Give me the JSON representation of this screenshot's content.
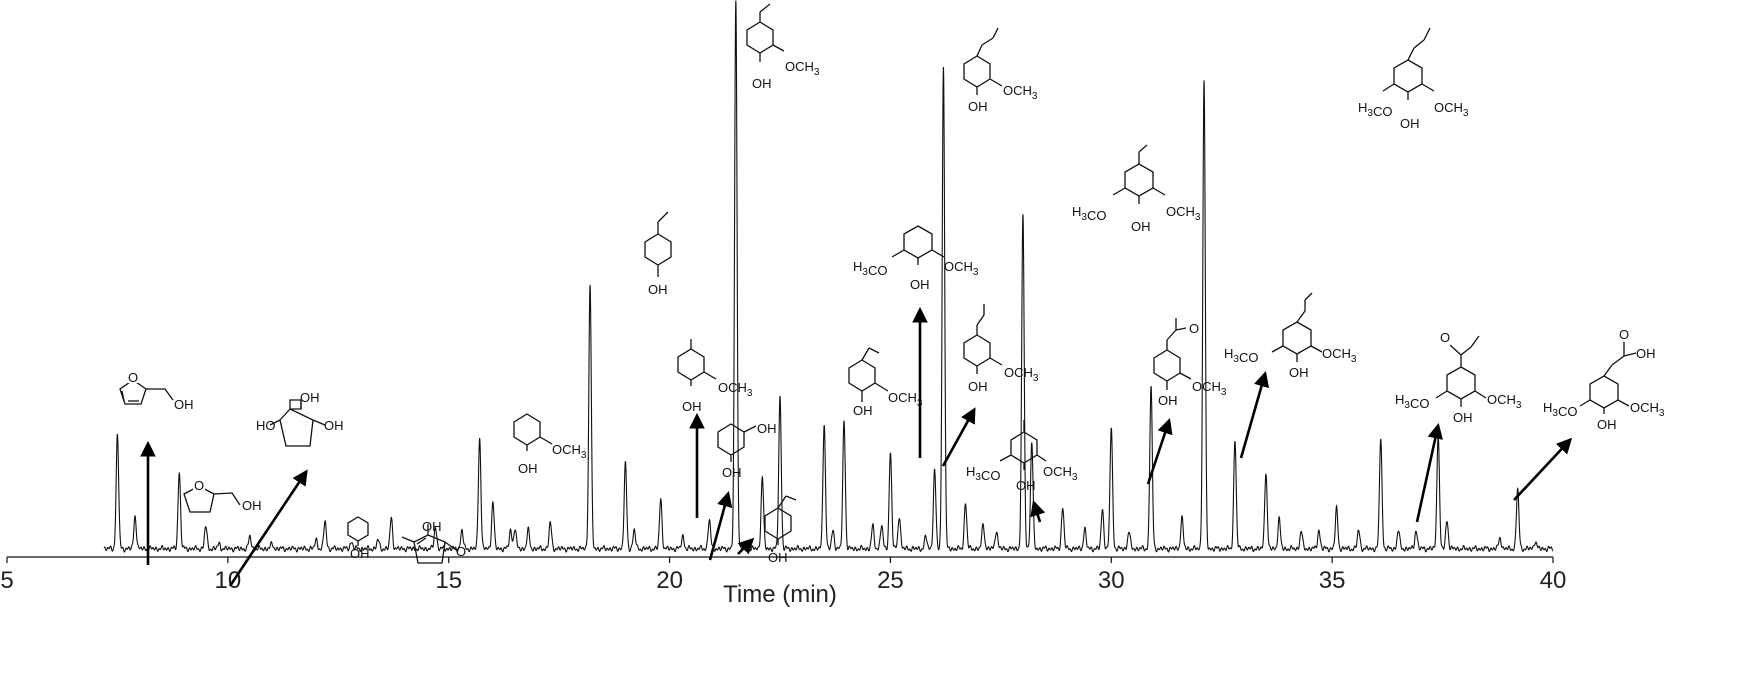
{
  "chart_data": {
    "type": "line",
    "xlabel": "Time (min)",
    "ylabel": "",
    "xlim": [
      5,
      40
    ],
    "ylim": [
      0,
      100
    ],
    "xticks": [
      5,
      10,
      15,
      20,
      25,
      30,
      35,
      40
    ],
    "grid": false,
    "legend": "none",
    "line_color": "#111111",
    "baseline": 0.6,
    "peaks": [
      {
        "x": 7.5,
        "y": 20.8
      },
      {
        "x": 7.9,
        "y": 6.0
      },
      {
        "x": 8.9,
        "y": 13.9
      },
      {
        "x": 9.5,
        "y": 4.1
      },
      {
        "x": 9.8,
        "y": 0.9
      },
      {
        "x": 10.5,
        "y": 2.2
      },
      {
        "x": 11.0,
        "y": 0.9
      },
      {
        "x": 12.0,
        "y": 1.6
      },
      {
        "x": 12.2,
        "y": 5.0
      },
      {
        "x": 12.8,
        "y": 1.3
      },
      {
        "x": 13.4,
        "y": 1.6
      },
      {
        "x": 13.7,
        "y": 5.6
      },
      {
        "x": 14.7,
        "y": 4.0
      },
      {
        "x": 15.3,
        "y": 3.3
      },
      {
        "x": 15.7,
        "y": 20.3
      },
      {
        "x": 16.0,
        "y": 8.6
      },
      {
        "x": 16.4,
        "y": 3.4
      },
      {
        "x": 16.5,
        "y": 3.7
      },
      {
        "x": 16.8,
        "y": 3.4
      },
      {
        "x": 17.3,
        "y": 4.7
      },
      {
        "x": 18.2,
        "y": 48.3
      },
      {
        "x": 19.0,
        "y": 15.4
      },
      {
        "x": 19.2,
        "y": 3.4
      },
      {
        "x": 19.8,
        "y": 9.0
      },
      {
        "x": 20.3,
        "y": 2.3
      },
      {
        "x": 20.9,
        "y": 5.3
      },
      {
        "x": 21.5,
        "y": 100
      },
      {
        "x": 22.1,
        "y": 13.1
      },
      {
        "x": 22.5,
        "y": 27.7
      },
      {
        "x": 23.5,
        "y": 22.9
      },
      {
        "x": 23.7,
        "y": 3.4
      },
      {
        "x": 23.95,
        "y": 23.3
      },
      {
        "x": 24.6,
        "y": 4.1
      },
      {
        "x": 24.8,
        "y": 4.3
      },
      {
        "x": 25.0,
        "y": 17.6
      },
      {
        "x": 25.2,
        "y": 6.0
      },
      {
        "x": 25.8,
        "y": 2.2
      },
      {
        "x": 26.0,
        "y": 14.4
      },
      {
        "x": 26.2,
        "y": 87.8
      },
      {
        "x": 26.7,
        "y": 8.4
      },
      {
        "x": 27.1,
        "y": 4.5
      },
      {
        "x": 27.4,
        "y": 3.4
      },
      {
        "x": 28.0,
        "y": 60.9
      },
      {
        "x": 28.2,
        "y": 19.4
      },
      {
        "x": 28.9,
        "y": 7.5
      },
      {
        "x": 29.4,
        "y": 3.6
      },
      {
        "x": 29.8,
        "y": 7.2
      },
      {
        "x": 30.0,
        "y": 22.3
      },
      {
        "x": 30.4,
        "y": 3.2
      },
      {
        "x": 30.9,
        "y": 29.7
      },
      {
        "x": 31.6,
        "y": 5.6
      },
      {
        "x": 32.1,
        "y": 85.2
      },
      {
        "x": 32.8,
        "y": 19.8
      },
      {
        "x": 33.5,
        "y": 14.0
      },
      {
        "x": 33.8,
        "y": 5.4
      },
      {
        "x": 34.3,
        "y": 3.2
      },
      {
        "x": 34.7,
        "y": 3.4
      },
      {
        "x": 35.1,
        "y": 7.3
      },
      {
        "x": 35.6,
        "y": 3.4
      },
      {
        "x": 36.1,
        "y": 20.3
      },
      {
        "x": 36.5,
        "y": 3.4
      },
      {
        "x": 36.9,
        "y": 3.4
      },
      {
        "x": 37.4,
        "y": 21.1
      },
      {
        "x": 37.6,
        "y": 5.2
      },
      {
        "x": 38.8,
        "y": 2.0
      },
      {
        "x": 39.2,
        "y": 10.8
      },
      {
        "x": 39.6,
        "y": 1.4
      }
    ],
    "structure_labels": [
      {
        "id": "hydroxymethylfuran",
        "texts": [
          "OH"
        ]
      },
      {
        "id": "tetrahydrofurfuryl-alcohol",
        "texts": [
          "OH"
        ]
      },
      {
        "id": "cyclopentanetriol",
        "texts": [
          "OH",
          "HO",
          "OH"
        ]
      },
      {
        "id": "phenol",
        "texts": [
          "OH"
        ]
      },
      {
        "id": "methylcyclopentenolone",
        "texts": [
          "OH",
          "O"
        ]
      },
      {
        "id": "guaiacol",
        "texts": [
          "OH",
          "OCH3"
        ]
      },
      {
        "id": "ethylphenol",
        "texts": [
          "OH"
        ]
      },
      {
        "id": "methylguaiacol",
        "texts": [
          "OH",
          "OCH3"
        ]
      },
      {
        "id": "catechol",
        "texts": [
          "OH",
          "OH"
        ]
      },
      {
        "id": "vinylphenol",
        "texts": [
          "OH"
        ]
      },
      {
        "id": "ethylguaiacol",
        "texts": [
          "OH",
          "OCH3"
        ]
      },
      {
        "id": "vinylguaiacol",
        "texts": [
          "OH",
          "OCH3"
        ]
      },
      {
        "id": "syringol",
        "texts": [
          "H3CO",
          "OH",
          "OCH3"
        ]
      },
      {
        "id": "propylguaiacol",
        "texts": [
          "OH",
          "OCH3"
        ]
      },
      {
        "id": "methylsyringol",
        "texts": [
          "H3CO",
          "OH",
          "OCH3"
        ]
      },
      {
        "id": "isoeugenol",
        "texts": [
          "OH",
          "OCH3"
        ]
      },
      {
        "id": "ethylsyringol",
        "texts": [
          "H3CO",
          "OH",
          "OCH3"
        ]
      },
      {
        "id": "guaiacylacetone",
        "texts": [
          "O",
          "OH",
          "OCH3"
        ]
      },
      {
        "id": "propylsyringol",
        "texts": [
          "H3CO",
          "OH",
          "OCH3"
        ]
      },
      {
        "id": "propenylsyringol",
        "texts": [
          "H3CO",
          "OH",
          "OCH3"
        ]
      },
      {
        "id": "propiosyringone",
        "texts": [
          "O",
          "H3CO",
          "OH",
          "OCH3"
        ]
      },
      {
        "id": "syringylacetic-acid",
        "texts": [
          "O",
          "OH",
          "H3CO",
          "OH",
          "OCH3"
        ]
      }
    ]
  }
}
